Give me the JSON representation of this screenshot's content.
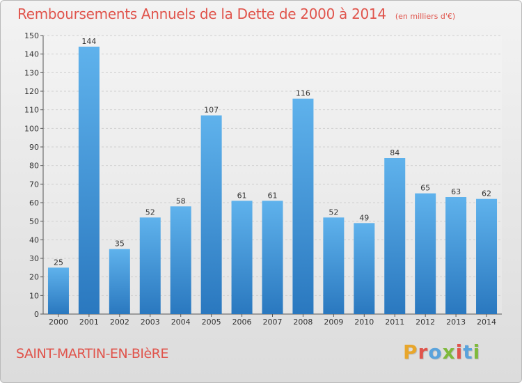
{
  "header": {
    "title": "Remboursements Annuels de la Dette de 2000 à 2014",
    "unit": "(en milliers d'€)"
  },
  "footer": {
    "commune": "SAINT-MARTIN-EN-BIèRE",
    "brand": "Proxiti",
    "brand_colors": [
      "#e8a62b",
      "#e0544c",
      "#5aa3dc",
      "#7fb93c",
      "#e0544c",
      "#5aa3dc",
      "#7fb93c"
    ]
  },
  "colors": {
    "title": "#e0544c",
    "bar_top": "#5fb2ec",
    "bar_bottom": "#2a78bf",
    "grid": "#cfcfcf",
    "axis": "#555555",
    "label": "#333333"
  },
  "chart_data": {
    "type": "bar",
    "title": "Remboursements Annuels de la Dette de 2000 à 2014",
    "xlabel": "",
    "ylabel": "",
    "categories": [
      "2000",
      "2001",
      "2002",
      "2003",
      "2004",
      "2005",
      "2006",
      "2007",
      "2008",
      "2009",
      "2010",
      "2011",
      "2012",
      "2013",
      "2014"
    ],
    "values": [
      25,
      144,
      35,
      52,
      58,
      107,
      61,
      61,
      116,
      52,
      49,
      84,
      65,
      63,
      62
    ],
    "ylim": [
      0,
      150
    ],
    "yticks": [
      0,
      10,
      20,
      30,
      40,
      50,
      60,
      70,
      80,
      90,
      100,
      110,
      120,
      130,
      140,
      150
    ],
    "grid": true
  }
}
